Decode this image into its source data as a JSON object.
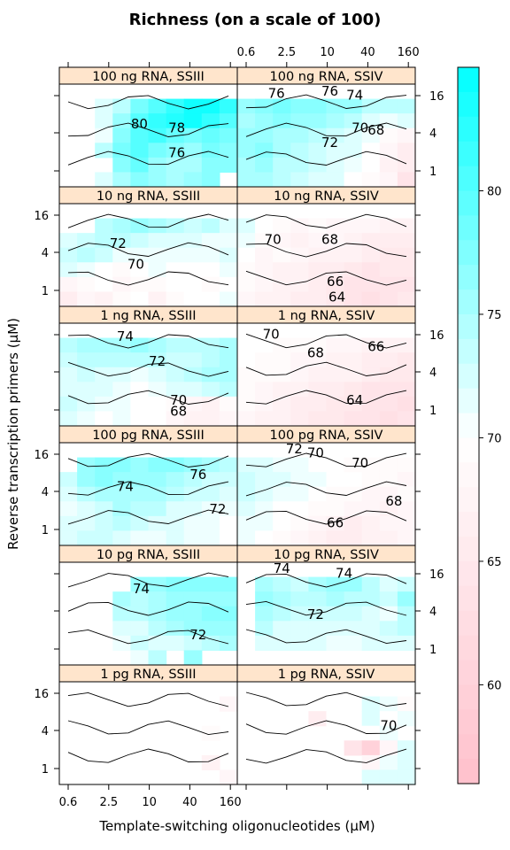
{
  "chart_data": {
    "type": "heatmap",
    "title": "Richness (on a scale of 100)",
    "xlabel": "Template-switching oligonucleotides (µM)",
    "ylabel": "Reverse transcription primers (µM)",
    "x_ticks": [
      "0.6",
      "2.5",
      "10",
      "40",
      "160"
    ],
    "y_ticks": [
      "1",
      "4",
      "16"
    ],
    "colorbar": {
      "ticks": [
        60,
        65,
        70,
        75,
        80
      ],
      "range": [
        56,
        85
      ],
      "low_color": "#ffc0cb",
      "mid_color": "#ffffff",
      "high_color": "#00ffff"
    },
    "panels": [
      {
        "label": "100 ng RNA, SSIII",
        "column": 0,
        "row": 0,
        "contour_labels": [
          "80",
          "78",
          "76"
        ],
        "values": [
          [
            null,
            null,
            null,
            null,
            null,
            null,
            null,
            null,
            null,
            null
          ],
          [
            null,
            null,
            72,
            74,
            78,
            80,
            82,
            84,
            84,
            82
          ],
          [
            null,
            null,
            72,
            76,
            80,
            82,
            83,
            84,
            82,
            80
          ],
          [
            null,
            null,
            71,
            77,
            80,
            81,
            79,
            78,
            79,
            78
          ],
          [
            null,
            70,
            74,
            78,
            80,
            78,
            77,
            76,
            78,
            77
          ],
          [
            null,
            null,
            null,
            77,
            79,
            76,
            75,
            75,
            77,
            77
          ],
          [
            null,
            null,
            72,
            75,
            77,
            76,
            75,
            76,
            77,
            null
          ]
        ]
      },
      {
        "label": "100 ng RNA, SSIV",
        "column": 1,
        "row": 0,
        "contour_labels": [
          "76",
          "76",
          "74",
          "72",
          "70",
          "68"
        ],
        "values": [
          [
            null,
            null,
            null,
            null,
            null,
            null,
            null,
            null,
            null,
            null
          ],
          [
            76,
            77,
            78,
            77,
            77,
            76,
            76,
            74,
            74,
            74
          ],
          [
            75,
            76,
            77,
            76,
            76,
            75,
            74,
            72,
            71,
            72
          ],
          [
            76,
            76,
            75,
            75,
            74,
            73,
            72,
            71,
            69,
            68
          ],
          [
            76,
            77,
            75,
            74,
            73,
            72,
            72,
            70,
            68,
            66
          ],
          [
            75,
            76,
            74,
            74,
            73,
            72,
            71,
            70,
            67,
            66
          ],
          [
            75,
            75,
            74,
            73,
            72,
            72,
            70,
            69,
            68,
            64
          ]
        ]
      },
      {
        "label": "10 ng RNA, SSIII",
        "column": 0,
        "row": 1,
        "contour_labels": [
          "72",
          "70"
        ],
        "values": [
          [
            null,
            null,
            null,
            null,
            null,
            null,
            null,
            null,
            null,
            null
          ],
          [
            null,
            null,
            74,
            75,
            76,
            75,
            74,
            73,
            74,
            72
          ],
          [
            72,
            73,
            74,
            74,
            73,
            72,
            72,
            72,
            71,
            71
          ],
          [
            73,
            74,
            73,
            71,
            71,
            71,
            71,
            71,
            71,
            72
          ],
          [
            72,
            71,
            70,
            69,
            70,
            71,
            70,
            70,
            70,
            71
          ],
          [
            68,
            69,
            70,
            68,
            69,
            69,
            70,
            70,
            69,
            70
          ],
          [
            66,
            68,
            67,
            69,
            70,
            67,
            69,
            70,
            70,
            71
          ]
        ]
      },
      {
        "label": "10 ng RNA, SSIV",
        "column": 1,
        "row": 1,
        "contour_labels": [
          "70",
          "68",
          "66",
          "64"
        ],
        "values": [
          [
            null,
            null,
            null,
            null,
            null,
            null,
            null,
            null,
            null,
            null
          ],
          [
            72,
            70,
            69,
            68,
            69,
            68,
            68,
            68,
            67,
            67
          ],
          [
            71,
            69,
            68,
            67,
            68,
            68,
            67,
            66,
            66,
            66
          ],
          [
            70,
            68,
            69,
            68,
            67,
            67,
            67,
            66,
            65,
            65
          ],
          [
            69,
            68,
            67,
            67,
            66,
            66,
            65,
            64,
            65,
            65
          ],
          [
            69,
            68,
            67,
            67,
            66,
            65,
            64,
            64,
            64,
            64
          ],
          [
            68,
            67,
            67,
            66,
            66,
            65,
            64,
            63,
            64,
            65
          ]
        ]
      },
      {
        "label": "1 ng RNA, SSIII",
        "column": 0,
        "row": 2,
        "contour_labels": [
          "74",
          "72",
          "70",
          "68"
        ],
        "values": [
          [
            null,
            null,
            null,
            null,
            null,
            null,
            null,
            null,
            null,
            null
          ],
          [
            74,
            75,
            75,
            75,
            76,
            75,
            74,
            74,
            74,
            75
          ],
          [
            73,
            74,
            74,
            74,
            74,
            74,
            73,
            73,
            74,
            75
          ],
          [
            72,
            73,
            72,
            72,
            71,
            72,
            73,
            74,
            75,
            75
          ],
          [
            72,
            72,
            72,
            71,
            70,
            71,
            72,
            72,
            73,
            74
          ],
          [
            73,
            72,
            71,
            71,
            70,
            70,
            69,
            68,
            67,
            69
          ],
          [
            72,
            71,
            70,
            71,
            70,
            70,
            68,
            67,
            67,
            68
          ]
        ]
      },
      {
        "label": "1 ng RNA, SSIV",
        "column": 1,
        "row": 2,
        "contour_labels": [
          "70",
          "68",
          "66",
          "64"
        ],
        "values": [
          [
            null,
            null,
            null,
            null,
            null,
            null,
            null,
            null,
            null,
            null
          ],
          [
            70,
            70,
            69,
            69,
            69,
            68,
            68,
            67,
            67,
            67
          ],
          [
            70,
            69,
            69,
            68,
            68,
            67,
            67,
            66,
            66,
            65
          ],
          [
            69,
            69,
            69,
            68,
            67,
            67,
            67,
            66,
            65,
            65
          ],
          [
            69,
            68,
            67,
            67,
            66,
            66,
            65,
            64,
            64,
            64
          ],
          [
            69,
            68,
            67,
            66,
            66,
            65,
            65,
            64,
            64,
            63
          ],
          [
            68,
            67,
            67,
            66,
            65,
            65,
            64,
            64,
            63,
            64
          ]
        ]
      },
      {
        "label": "100 pg RNA, SSIII",
        "column": 0,
        "row": 3,
        "contour_labels": [
          "74",
          "76",
          "72"
        ],
        "values": [
          [
            null,
            null,
            null,
            null,
            null,
            null,
            null,
            null,
            null,
            null
          ],
          [
            null,
            76,
            77,
            77,
            76,
            77,
            77,
            76,
            75,
            74
          ],
          [
            73,
            76,
            77,
            76,
            76,
            76,
            75,
            74,
            73,
            73
          ],
          [
            72,
            74,
            75,
            75,
            75,
            75,
            74,
            73,
            73,
            72
          ],
          [
            71,
            72,
            73,
            75,
            74,
            74,
            72,
            72,
            71,
            71
          ],
          [
            72,
            72,
            73,
            74,
            73,
            72,
            72,
            71,
            71,
            70
          ],
          [
            72,
            73,
            73,
            72,
            71,
            71,
            72,
            71,
            71,
            70
          ]
        ]
      },
      {
        "label": "100 pg RNA, SSIV",
        "column": 1,
        "row": 3,
        "contour_labels": [
          "72",
          "70",
          "70",
          "68",
          "66"
        ],
        "values": [
          [
            null,
            null,
            null,
            null,
            null,
            null,
            null,
            null,
            null,
            null
          ],
          [
            72,
            72,
            71,
            71,
            70,
            70,
            69,
            69,
            69,
            69
          ],
          [
            73,
            72,
            72,
            71,
            71,
            70,
            70,
            69,
            69,
            68
          ],
          [
            73,
            72,
            71,
            71,
            70,
            69,
            69,
            68,
            68,
            69
          ],
          [
            72,
            71,
            70,
            70,
            69,
            69,
            68,
            68,
            67,
            68
          ],
          [
            71,
            71,
            70,
            69,
            68,
            67,
            66,
            67,
            68,
            68
          ],
          [
            71,
            70,
            69,
            68,
            67,
            66,
            66,
            67,
            67,
            68
          ]
        ]
      },
      {
        "label": "10 pg RNA, SSIII",
        "column": 0,
        "row": 4,
        "contour_labels": [
          "74",
          "72"
        ],
        "values": [
          [
            null,
            null,
            null,
            null,
            null,
            null,
            null,
            null,
            null,
            null
          ],
          [
            null,
            null,
            null,
            null,
            76,
            76,
            77,
            77,
            77,
            77
          ],
          [
            null,
            null,
            null,
            75,
            74,
            75,
            76,
            76,
            76,
            76
          ],
          [
            null,
            null,
            null,
            74,
            74,
            75,
            76,
            76,
            77,
            77
          ],
          [
            null,
            null,
            null,
            72,
            72,
            74,
            75,
            76,
            76,
            76
          ],
          [
            null,
            null,
            null,
            71,
            73,
            72,
            72,
            73,
            74,
            75
          ],
          [
            null,
            null,
            null,
            null,
            71,
            74,
            null,
            76,
            null,
            null
          ]
        ]
      },
      {
        "label": "10 pg RNA, SSIV",
        "column": 1,
        "row": 4,
        "contour_labels": [
          "74",
          "74",
          "72"
        ],
        "values": [
          [
            null,
            null,
            null,
            null,
            null,
            null,
            null,
            null,
            null,
            null
          ],
          [
            null,
            75,
            74,
            73,
            75,
            76,
            76,
            74,
            72,
            73
          ],
          [
            null,
            76,
            75,
            74,
            74,
            75,
            74,
            74,
            73,
            76
          ],
          [
            null,
            75,
            74,
            73,
            73,
            73,
            73,
            72,
            71,
            74
          ],
          [
            null,
            74,
            72,
            72,
            72,
            72,
            72,
            72,
            73,
            74
          ],
          [
            null,
            72,
            72,
            72,
            72,
            71,
            71,
            72,
            72,
            72
          ],
          [
            null,
            null,
            null,
            null,
            null,
            null,
            null,
            null,
            null,
            null
          ]
        ]
      },
      {
        "label": "1 pg RNA, SSIII",
        "column": 0,
        "row": 5,
        "contour_labels": [],
        "values": [
          [
            null,
            null,
            null,
            null,
            null,
            null,
            null,
            null,
            null,
            null
          ],
          [
            null,
            null,
            null,
            null,
            null,
            null,
            null,
            null,
            null,
            68
          ],
          [
            null,
            null,
            null,
            null,
            null,
            null,
            null,
            null,
            null,
            null
          ],
          [
            null,
            null,
            null,
            null,
            null,
            null,
            null,
            null,
            69,
            null
          ],
          [
            null,
            null,
            null,
            null,
            null,
            null,
            null,
            null,
            null,
            null
          ],
          [
            null,
            null,
            null,
            null,
            null,
            null,
            null,
            null,
            67,
            null
          ],
          [
            null,
            null,
            null,
            null,
            null,
            null,
            null,
            null,
            null,
            68
          ]
        ]
      },
      {
        "label": "1 pg RNA, SSIV",
        "column": 1,
        "row": 5,
        "contour_labels": [
          "70"
        ],
        "values": [
          [
            null,
            null,
            null,
            null,
            null,
            null,
            null,
            null,
            null,
            null
          ],
          [
            null,
            null,
            null,
            null,
            null,
            null,
            null,
            72,
            71,
            69
          ],
          [
            null,
            null,
            null,
            null,
            66,
            70,
            null,
            72,
            70,
            71
          ],
          [
            null,
            null,
            null,
            null,
            null,
            null,
            null,
            70,
            71,
            null
          ],
          [
            null,
            null,
            null,
            null,
            null,
            null,
            64,
            60,
            68,
            72
          ],
          [
            null,
            null,
            null,
            null,
            null,
            null,
            null,
            68,
            71,
            72
          ],
          [
            null,
            null,
            null,
            null,
            null,
            null,
            null,
            72,
            72,
            72
          ]
        ]
      }
    ]
  }
}
